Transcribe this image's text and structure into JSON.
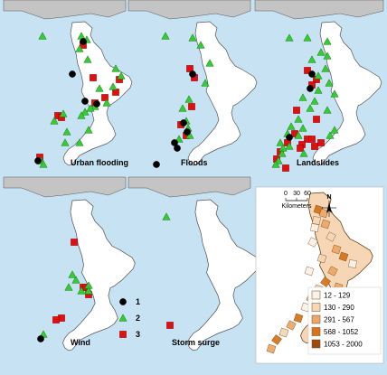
{
  "panels": [
    {
      "id": "urban",
      "title": "Urban flooding",
      "markers": {
        "1": [
          [
            92,
            46
          ],
          [
            80,
            82
          ],
          [
            94,
            112
          ],
          [
            107,
            115
          ],
          [
            42,
            178
          ]
        ],
        "2": [
          [
            47,
            40
          ],
          [
            90,
            40
          ],
          [
            96,
            44
          ],
          [
            88,
            54
          ],
          [
            97,
            66
          ],
          [
            128,
            76
          ],
          [
            134,
            84
          ],
          [
            125,
            96
          ],
          [
            110,
            98
          ],
          [
            118,
            114
          ],
          [
            105,
            118
          ],
          [
            100,
            120
          ],
          [
            94,
            124
          ],
          [
            90,
            128
          ],
          [
            70,
            126
          ],
          [
            60,
            134
          ],
          [
            74,
            146
          ],
          [
            98,
            144
          ],
          [
            88,
            158
          ],
          [
            72,
            158
          ],
          [
            45,
            178
          ],
          [
            48,
            182
          ]
        ],
        "3": [
          [
            92,
            50
          ],
          [
            103,
            86
          ],
          [
            132,
            88
          ],
          [
            128,
            102
          ],
          [
            105,
            114
          ],
          [
            116,
            108
          ],
          [
            64,
            128
          ],
          [
            68,
            130
          ],
          [
            44,
            174
          ]
        ]
      }
    },
    {
      "id": "floods",
      "title": "Floods",
      "markers": {
        "1": [
          [
            213,
            82
          ],
          [
            203,
            136
          ],
          [
            207,
            146
          ],
          [
            193,
            158
          ],
          [
            196,
            164
          ],
          [
            173,
            182
          ]
        ],
        "2": [
          [
            183,
            40
          ],
          [
            213,
            42
          ],
          [
            222,
            50
          ],
          [
            232,
            70
          ],
          [
            227,
            92
          ],
          [
            209,
            110
          ],
          [
            202,
            120
          ],
          [
            206,
            134
          ],
          [
            208,
            142
          ],
          [
            210,
            150
          ],
          [
            198,
            154
          ]
        ],
        "3": [
          [
            210,
            76
          ],
          [
            215,
            86
          ],
          [
            212,
            118
          ],
          [
            200,
            138
          ],
          [
            206,
            150
          ]
        ]
      }
    },
    {
      "id": "landslides",
      "title": "Landslides",
      "markers": {
        "1": [
          [
            345,
            82
          ],
          [
            343,
            98
          ],
          [
            320,
            152
          ]
        ],
        "2": [
          [
            320,
            42
          ],
          [
            340,
            42
          ],
          [
            362,
            46
          ],
          [
            355,
            58
          ],
          [
            362,
            62
          ],
          [
            345,
            66
          ],
          [
            360,
            76
          ],
          [
            352,
            84
          ],
          [
            364,
            92
          ],
          [
            352,
            100
          ],
          [
            370,
            104
          ],
          [
            335,
            108
          ],
          [
            348,
            112
          ],
          [
            343,
            120
          ],
          [
            362,
            122
          ],
          [
            330,
            132
          ],
          [
            322,
            140
          ],
          [
            335,
            142
          ],
          [
            318,
            148
          ],
          [
            330,
            150
          ],
          [
            320,
            162
          ],
          [
            336,
            170
          ],
          [
            310,
            158
          ],
          [
            313,
            164
          ],
          [
            312,
            170
          ],
          [
            308,
            178
          ],
          [
            305,
            182
          ],
          [
            365,
            150
          ],
          [
            370,
            144
          ]
        ],
        "3": [
          [
            340,
            78
          ],
          [
            350,
            88
          ],
          [
            345,
            94
          ],
          [
            328,
            122
          ],
          [
            350,
            132
          ],
          [
            326,
            148
          ],
          [
            340,
            154
          ],
          [
            318,
            158
          ],
          [
            334,
            160
          ],
          [
            332,
            164
          ],
          [
            345,
            154
          ],
          [
            355,
            158
          ],
          [
            348,
            162
          ],
          [
            310,
            168
          ],
          [
            306,
            176
          ],
          [
            316,
            186
          ]
        ]
      }
    },
    {
      "id": "wind",
      "title": "Wind",
      "markers": {
        "1": [
          [
            45,
            375
          ]
        ],
        "2": [
          [
            80,
            304
          ],
          [
            84,
            310
          ],
          [
            76,
            318
          ],
          [
            90,
            322
          ],
          [
            98,
            316
          ],
          [
            98,
            322
          ],
          [
            48,
            370
          ]
        ],
        "3": [
          [
            82,
            268
          ],
          [
            92,
            318
          ],
          [
            68,
            352
          ],
          [
            95,
            318
          ],
          [
            98,
            326
          ],
          [
            62,
            354
          ]
        ]
      }
    },
    {
      "id": "storm",
      "title": "Storm surge",
      "markers": {
        "1": [],
        "2": [
          [
            184,
            240
          ]
        ],
        "3": [
          [
            188,
            360
          ]
        ]
      }
    }
  ],
  "legend": {
    "items": [
      {
        "key": "1",
        "label": "1",
        "shape": "circle",
        "color": "#000000"
      },
      {
        "key": "2",
        "label": "2",
        "shape": "triangle",
        "color": "#33cc33"
      },
      {
        "key": "3",
        "label": "3",
        "shape": "square",
        "color": "#e01010"
      }
    ]
  },
  "choropleth": {
    "classes": [
      {
        "label": "12 - 129",
        "color": "#fbf1e6"
      },
      {
        "label": "130 - 290",
        "color": "#f6d6b4"
      },
      {
        "label": "291 - 567",
        "color": "#eda869"
      },
      {
        "label": "568 - 1052",
        "color": "#d8741c"
      },
      {
        "label": "1053 - 2000",
        "color": "#9a4b0f"
      }
    ]
  },
  "scale": {
    "ticks": [
      "0",
      "30",
      "60"
    ],
    "unit": "Kilometers"
  },
  "north_label": "N",
  "colors": {
    "sea": "#c7e3f3",
    "land": "#ffffff",
    "outside_land": "#c4c4c4",
    "outline": "#555555"
  }
}
